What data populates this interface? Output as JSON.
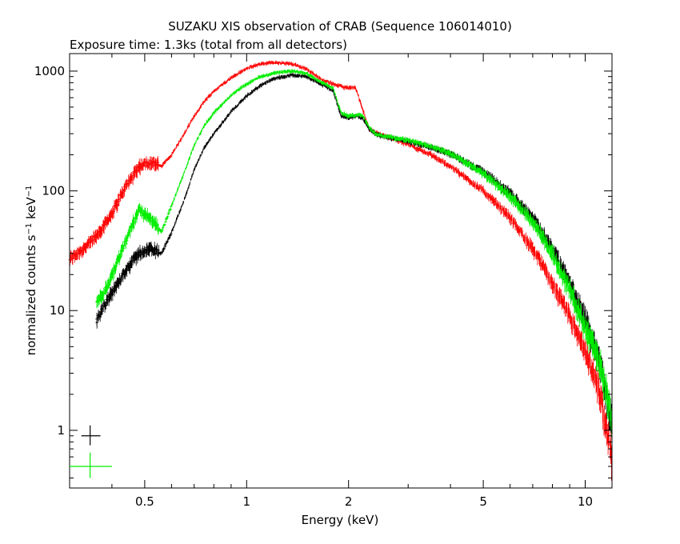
{
  "chart_data": {
    "type": "scatter",
    "title": "SUZAKU XIS observation of CRAB (Sequence 106014010)",
    "subtitle": "Exposure time: 1.3ks (total from all detectors)",
    "xlabel": "Energy (keV)",
    "ylabel": {
      "base": "normalized counts s",
      "sup1": "−1",
      "mid": " keV",
      "sup2": "−1"
    },
    "xscale": "log",
    "yscale": "log",
    "xlim": [
      0.3,
      12
    ],
    "ylim": [
      0.33,
      1400
    ],
    "grid": false,
    "x_ticks": [
      {
        "value": 0.5,
        "label": "0.5"
      },
      {
        "value": 1,
        "label": "1"
      },
      {
        "value": 2,
        "label": "2"
      },
      {
        "value": 5,
        "label": "5"
      },
      {
        "value": 10,
        "label": "10"
      }
    ],
    "y_ticks": [
      {
        "value": 1,
        "label": "1"
      },
      {
        "value": 10,
        "label": "10"
      },
      {
        "value": 100,
        "label": "100"
      },
      {
        "value": 1000,
        "label": "1000"
      }
    ],
    "legend": {
      "placement": "bottom-left",
      "markers": [
        {
          "color": "#000000",
          "x": 0.345,
          "xerr": [
            0.325,
            0.37
          ],
          "y": 0.9,
          "yerr": [
            0.75,
            1.1
          ]
        },
        {
          "color": "#00ee00",
          "x": 0.345,
          "xerr": [
            0.3,
            0.4
          ],
          "y": 0.5,
          "yerr": [
            0.4,
            0.65
          ]
        }
      ]
    },
    "series": [
      {
        "color": "#ff0000",
        "x": [
          0.3,
          0.33,
          0.36,
          0.4,
          0.44,
          0.48,
          0.52,
          0.56,
          0.6,
          0.65,
          0.7,
          0.75,
          0.8,
          0.9,
          1.0,
          1.1,
          1.2,
          1.35,
          1.5,
          1.65,
          1.8,
          1.95,
          2.1,
          2.2,
          2.3,
          2.4,
          2.5,
          3.0,
          3.5,
          4.0,
          5.0,
          6.0,
          7.0,
          8.0,
          9.0,
          10.0,
          11.0,
          12.0
        ],
        "y": [
          27,
          33,
          42,
          65,
          110,
          160,
          175,
          160,
          200,
          290,
          420,
          560,
          680,
          880,
          1050,
          1150,
          1180,
          1150,
          1050,
          860,
          780,
          730,
          720,
          480,
          330,
          310,
          295,
          245,
          200,
          160,
          100,
          60,
          33,
          17,
          9,
          4.5,
          2.2,
          0.6
        ]
      },
      {
        "color": "#00ee00",
        "x": [
          0.36,
          0.38,
          0.4,
          0.44,
          0.48,
          0.52,
          0.56,
          0.6,
          0.65,
          0.7,
          0.75,
          0.8,
          0.9,
          1.0,
          1.1,
          1.2,
          1.35,
          1.5,
          1.65,
          1.8,
          1.9,
          2.0,
          2.1,
          2.2,
          2.3,
          2.4,
          2.5,
          3.0,
          3.5,
          4.0,
          5.0,
          6.0,
          7.0,
          8.0,
          9.0,
          10.0,
          11.0,
          12.0
        ],
        "y": [
          12,
          14,
          20,
          38,
          70,
          60,
          45,
          75,
          135,
          240,
          350,
          450,
          630,
          780,
          900,
          960,
          1000,
          960,
          820,
          720,
          450,
          420,
          430,
          430,
          340,
          300,
          290,
          265,
          235,
          205,
          140,
          90,
          55,
          30,
          15,
          7.5,
          3.8,
          1.3
        ]
      },
      {
        "color": "#000000",
        "x": [
          0.36,
          0.38,
          0.4,
          0.44,
          0.48,
          0.52,
          0.56,
          0.6,
          0.65,
          0.7,
          0.75,
          0.8,
          0.9,
          1.0,
          1.1,
          1.2,
          1.35,
          1.5,
          1.65,
          1.8,
          1.9,
          2.0,
          2.1,
          2.2,
          2.3,
          2.4,
          2.5,
          3.0,
          3.5,
          4.0,
          5.0,
          6.0,
          7.0,
          8.0,
          9.0,
          10.0,
          11.0,
          12.0
        ],
        "y": [
          8,
          11,
          14,
          22,
          30,
          33,
          30,
          45,
          80,
          150,
          230,
          300,
          460,
          620,
          760,
          860,
          930,
          900,
          790,
          690,
          420,
          410,
          420,
          410,
          330,
          300,
          285,
          260,
          230,
          205,
          145,
          95,
          60,
          33,
          17,
          8.5,
          4,
          1.1
        ]
      }
    ]
  }
}
